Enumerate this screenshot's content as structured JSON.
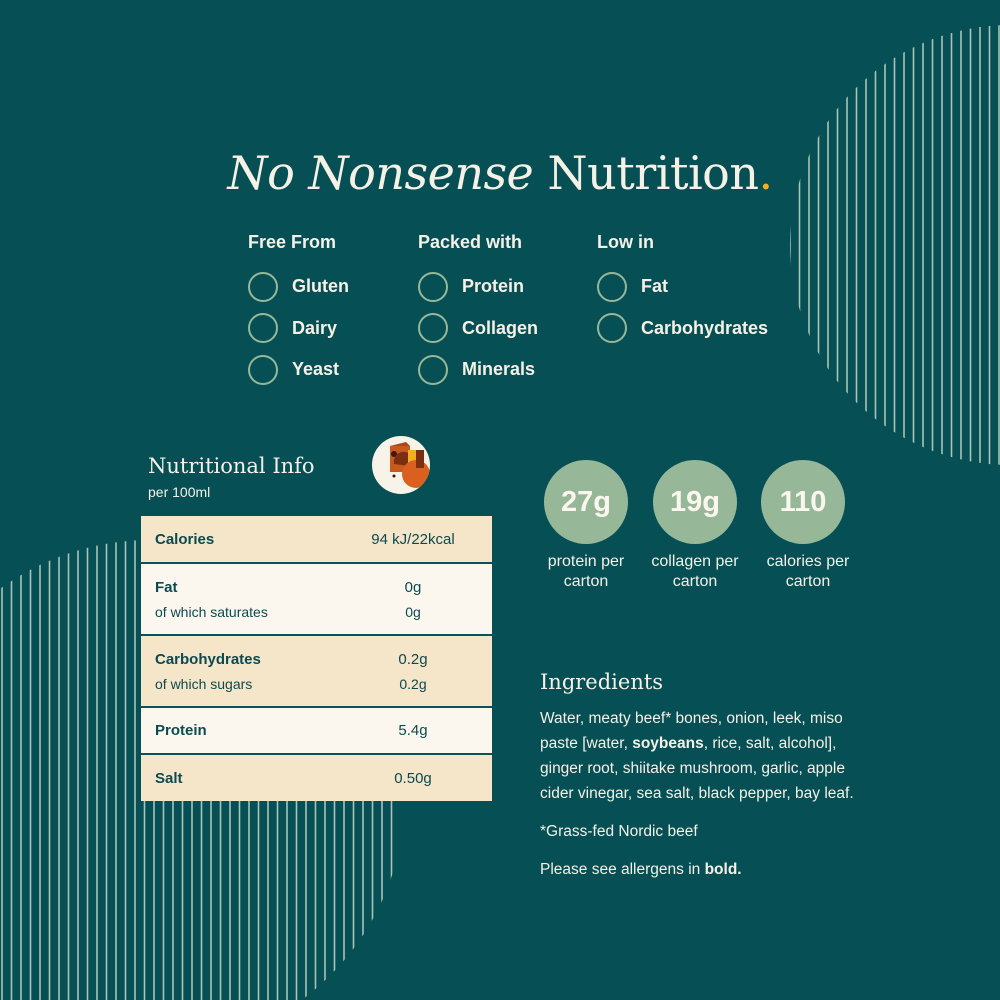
{
  "headline": {
    "italic": "No Nonsense",
    "regular": "Nutrition",
    "dot": ".",
    "dot_color": "#f2b01e"
  },
  "columns": [
    {
      "heading": "Free From",
      "items": [
        "Gluten",
        "Dairy",
        "Yeast"
      ]
    },
    {
      "heading": "Packed with",
      "items": [
        "Protein",
        "Collagen",
        "Minerals"
      ]
    },
    {
      "heading": "Low in",
      "items": [
        "Fat",
        "Carbohydrates"
      ]
    }
  ],
  "nutrition": {
    "title": "Nutritional Info",
    "subtitle": "per 100ml",
    "icon": "cow-illustration-icon",
    "rows": [
      {
        "label": "Calories",
        "value": "94 kJ/22kcal"
      },
      {
        "label": "Fat",
        "value": "0g",
        "sub_label": "of which saturates",
        "sub_value": "0g"
      },
      {
        "label": "Carbohydrates",
        "value": "0.2g",
        "sub_label": "of which sugars",
        "sub_value": "0.2g"
      },
      {
        "label": "Protein",
        "value": "5.4g"
      },
      {
        "label": "Salt",
        "value": "0.50g"
      }
    ]
  },
  "badges": [
    {
      "value": "27g",
      "label1": "protein per",
      "label2": "carton"
    },
    {
      "value": "19g",
      "label1": "collagen per",
      "label2": "carton"
    },
    {
      "value": "110",
      "label1": "calories per",
      "label2": "carton"
    }
  ],
  "ingredients": {
    "title": "Ingredients",
    "text_before": "Water, meaty beef* bones, onion, leek, miso paste [water, ",
    "allergen": "soybeans",
    "text_after": ", rice, salt, alcohol], ginger root, shiitake mushroom, garlic, apple cider vinegar, sea salt, black pepper, bay leaf.",
    "footnote": "*Grass-fed Nordic beef",
    "allergen_note": "Please see allergens in ",
    "allergen_note_bold": "bold."
  },
  "colors": {
    "background": "#064f55",
    "badge": "#97b898",
    "table_alt": "#f5e5c9",
    "table_light": "#fbf7ee"
  }
}
